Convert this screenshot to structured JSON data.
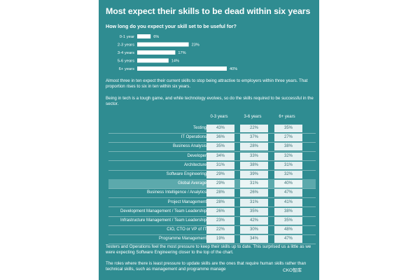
{
  "colors": {
    "panel": "#2f8c91",
    "bar": "#ffffff",
    "highlight": "#5ca9ac",
    "cell_text": "#3a6e73"
  },
  "title": "Most expect their skills to be dead within six years",
  "subtitle": "How long do you expect your skill set to be useful for?",
  "paragraph1": "Almost three in ten expect their current skills to stop being attractive to employers within three years. That proportion rises to six in ten within six years.",
  "paragraph2": "Being in tech is a tough game, and while technology evolves, so do the skills required to be successful in the sector.",
  "paragraph3": "Testers and Operations feel the most pressure to keep their skills up to date. This surprised us a little as we were expecting Software Engineering closer to the top of the chart.",
  "paragraph4": "The roles where there is least pressure to update skills are the ones that require human skills rather than technical skills, such as management and programme manage",
  "watermark": "CKO智库",
  "chart_data": [
    {
      "type": "bar",
      "title": "How long do you expect your skill set to be useful for?",
      "categories": [
        "0-1 year",
        "2-3 years",
        "3-4 years",
        "5-6 years",
        "6+ years"
      ],
      "values": [
        6,
        23,
        17,
        14,
        40
      ],
      "value_labels": [
        "6%",
        "23%",
        "17%",
        "14%",
        "40%"
      ],
      "xlim": [
        0,
        40
      ],
      "orientation": "horizontal",
      "grid": false
    },
    {
      "type": "table",
      "columns": [
        "0-3 years",
        "3-6 years",
        "6+ years"
      ],
      "highlight_row": "Global Average",
      "rows": [
        {
          "label": "Testing",
          "values": [
            "43%",
            "22%",
            "35%"
          ]
        },
        {
          "label": "IT Operations",
          "values": [
            "36%",
            "37%",
            "27%"
          ]
        },
        {
          "label": "Business Analysis",
          "values": [
            "35%",
            "28%",
            "38%"
          ]
        },
        {
          "label": "Developer",
          "values": [
            "34%",
            "33%",
            "32%"
          ]
        },
        {
          "label": "Architecture",
          "values": [
            "31%",
            "38%",
            "31%"
          ]
        },
        {
          "label": "Software Engineering",
          "values": [
            "29%",
            "39%",
            "32%"
          ]
        },
        {
          "label": "Global Average",
          "values": [
            "29%",
            "31%",
            "40%"
          ]
        },
        {
          "label": "Business Intelligence / Analytics",
          "values": [
            "28%",
            "26%",
            "47%"
          ]
        },
        {
          "label": "Project Management",
          "values": [
            "28%",
            "31%",
            "41%"
          ]
        },
        {
          "label": "Development Management / Team Leadership",
          "values": [
            "26%",
            "35%",
            "38%"
          ]
        },
        {
          "label": "Infrastructure Management / Team Leadership",
          "values": [
            "23%",
            "42%",
            "35%"
          ]
        },
        {
          "label": "CIO, CTO or VP of IT",
          "values": [
            "22%",
            "30%",
            "48%"
          ]
        },
        {
          "label": "Programme Management",
          "values": [
            "19%",
            "34%",
            "47%"
          ]
        }
      ]
    }
  ]
}
